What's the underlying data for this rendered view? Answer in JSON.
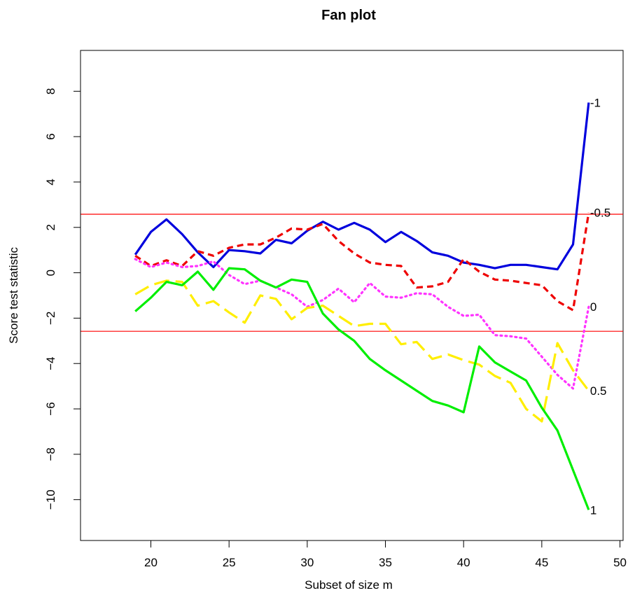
{
  "chart_data": {
    "type": "line",
    "title": "Fan plot",
    "xlabel": "Subset of size m",
    "ylabel": "Score test statistic",
    "xlim": [
      15.5,
      50.2
    ],
    "ylim": [
      -11.8,
      9.8
    ],
    "xticks": [
      20,
      25,
      30,
      35,
      40,
      45,
      50
    ],
    "xtick_labels": [
      "20",
      "25",
      "30",
      "35",
      "40",
      "45",
      "50"
    ],
    "yticks": [
      8,
      6,
      4,
      2,
      0,
      -2,
      -4,
      -6,
      -8,
      -10
    ],
    "ytick_labels": [
      "8",
      "6",
      "4",
      "2",
      "0",
      "−2",
      "−4",
      "−6",
      "−8",
      "−10"
    ],
    "reference_lines": [
      2.58,
      -2.58
    ],
    "reference_line_color": "#ff0000",
    "grid": false,
    "series": [
      {
        "name": "-1",
        "color": "#0000dd",
        "dash": "solid",
        "x": [
          19,
          20,
          21,
          22,
          23,
          24,
          25,
          26,
          27,
          28,
          29,
          30,
          31,
          32,
          33,
          34,
          35,
          36,
          37,
          38,
          39,
          40,
          41,
          42,
          43,
          44,
          45,
          46,
          47,
          48
        ],
        "y": [
          0.8,
          1.8,
          2.35,
          1.7,
          0.9,
          0.25,
          1.0,
          0.95,
          0.85,
          1.45,
          1.3,
          1.85,
          2.25,
          1.9,
          2.2,
          1.9,
          1.35,
          1.8,
          1.4,
          0.9,
          0.75,
          0.45,
          0.35,
          0.2,
          0.35,
          0.35,
          0.25,
          0.15,
          1.25,
          7.5
        ]
      },
      {
        "name": "-0.5",
        "color": "#ee0000",
        "dash": "dashed",
        "x": [
          19,
          20,
          21,
          22,
          23,
          24,
          25,
          26,
          27,
          28,
          29,
          30,
          31,
          32,
          33,
          34,
          35,
          36,
          37,
          38,
          39,
          40,
          41,
          42,
          43,
          44,
          45,
          46,
          47,
          48
        ],
        "y": [
          0.75,
          0.3,
          0.55,
          0.3,
          0.95,
          0.75,
          1.1,
          1.25,
          1.25,
          1.55,
          1.95,
          1.9,
          2.15,
          1.4,
          0.85,
          0.45,
          0.35,
          0.3,
          -0.65,
          -0.6,
          -0.4,
          0.6,
          0.05,
          -0.3,
          -0.35,
          -0.45,
          -0.55,
          -1.25,
          -1.65,
          2.65
        ]
      },
      {
        "name": "0",
        "color": "#ff33ff",
        "dash": "dotted",
        "x": [
          19,
          20,
          21,
          22,
          23,
          24,
          25,
          26,
          27,
          28,
          29,
          30,
          31,
          32,
          33,
          34,
          35,
          36,
          37,
          38,
          39,
          40,
          41,
          42,
          43,
          44,
          45,
          46,
          47,
          48
        ],
        "y": [
          0.6,
          0.25,
          0.45,
          0.25,
          0.3,
          0.5,
          -0.1,
          -0.5,
          -0.35,
          -0.65,
          -0.95,
          -1.5,
          -1.2,
          -0.7,
          -1.3,
          -0.45,
          -1.05,
          -1.1,
          -0.9,
          -0.95,
          -1.5,
          -1.9,
          -1.85,
          -2.75,
          -2.8,
          -2.9,
          -3.7,
          -4.5,
          -5.1,
          -1.5
        ]
      },
      {
        "name": "0.5",
        "color": "#ffee00",
        "dash": "longdash",
        "x": [
          19,
          20,
          21,
          22,
          23,
          24,
          25,
          26,
          27,
          28,
          29,
          30,
          31,
          32,
          33,
          34,
          35,
          36,
          37,
          38,
          39,
          40,
          41,
          42,
          43,
          44,
          45,
          46,
          47,
          48
        ],
        "y": [
          -0.95,
          -0.55,
          -0.35,
          -0.4,
          -1.45,
          -1.25,
          -1.75,
          -2.2,
          -1.0,
          -1.15,
          -2.05,
          -1.55,
          -1.45,
          -1.9,
          -2.35,
          -2.25,
          -2.25,
          -3.15,
          -3.05,
          -3.8,
          -3.6,
          -3.85,
          -4.05,
          -4.55,
          -4.85,
          -6.0,
          -6.55,
          -3.1,
          -4.3,
          -5.2
        ]
      },
      {
        "name": "1",
        "color": "#00ee00",
        "dash": "solid",
        "x": [
          19,
          20,
          21,
          22,
          23,
          24,
          25,
          26,
          27,
          28,
          29,
          30,
          31,
          32,
          33,
          34,
          35,
          36,
          37,
          38,
          39,
          40,
          41,
          42,
          43,
          44,
          45,
          46,
          47,
          48
        ],
        "y": [
          -1.7,
          -1.1,
          -0.4,
          -0.55,
          0.05,
          -0.75,
          0.2,
          0.15,
          -0.35,
          -0.65,
          -0.3,
          -0.4,
          -1.8,
          -2.5,
          -3.0,
          -3.8,
          -4.3,
          -4.75,
          -5.2,
          -5.65,
          -5.85,
          -6.15,
          -3.25,
          -3.95,
          -4.35,
          -4.75,
          -5.95,
          -6.95,
          -8.7,
          -10.45
        ]
      }
    ],
    "series_labels": [
      {
        "text": "-1",
        "anchor_series": 0
      },
      {
        "text": "-0.5",
        "anchor_series": 1
      },
      {
        "text": "0",
        "anchor_series": 2
      },
      {
        "text": "0.5",
        "anchor_series": 3
      },
      {
        "text": "1",
        "anchor_series": 4
      }
    ]
  }
}
